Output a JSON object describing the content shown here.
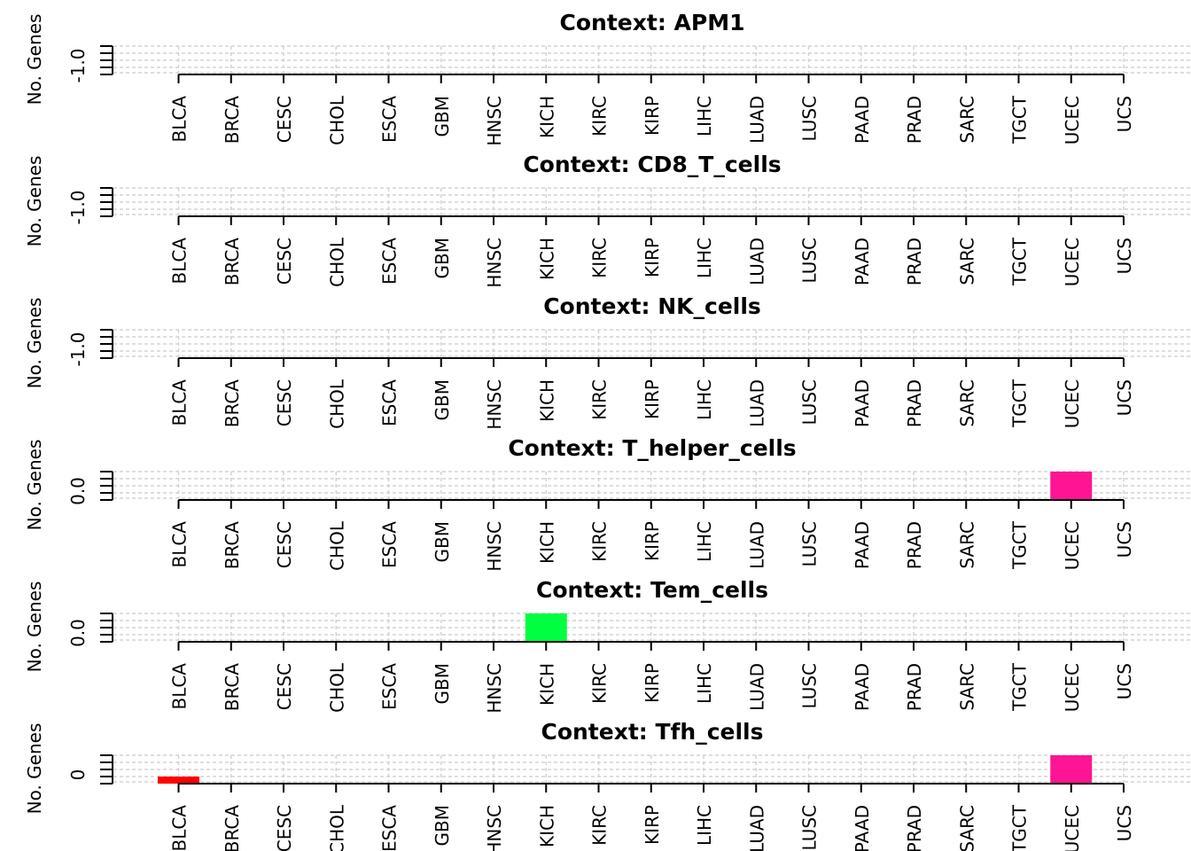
{
  "chart_data": {
    "type": "bar",
    "ylabel": "No. Genes",
    "categories": [
      "BLCA",
      "BRCA",
      "CESC",
      "CHOL",
      "ESCA",
      "GBM",
      "HNSC",
      "KICH",
      "KIRC",
      "KIRP",
      "LIHC",
      "LUAD",
      "LUSC",
      "PAAD",
      "PRAD",
      "SARC",
      "TGCT",
      "UCEC",
      "UCS"
    ],
    "panels": [
      {
        "title": "Context: APM1",
        "ytick_label": "-1.0",
        "values": [
          0,
          0,
          0,
          0,
          0,
          0,
          0,
          0,
          0,
          0,
          0,
          0,
          0,
          0,
          0,
          0,
          0,
          0,
          0
        ],
        "colors": {}
      },
      {
        "title": "Context: CD8_T_cells",
        "ytick_label": "-1.0",
        "values": [
          0,
          0,
          0,
          0,
          0,
          0,
          0,
          0,
          0,
          0,
          0,
          0,
          0,
          0,
          0,
          0,
          0,
          0,
          0
        ],
        "colors": {}
      },
      {
        "title": "Context: NK_cells",
        "ytick_label": "-1.0",
        "values": [
          0,
          0,
          0,
          0,
          0,
          0,
          0,
          0,
          0,
          0,
          0,
          0,
          0,
          0,
          0,
          0,
          0,
          0,
          0
        ],
        "colors": {}
      },
      {
        "title": "Context: T_helper_cells",
        "ytick_label": "0.0",
        "values": [
          0,
          0,
          0,
          0,
          0,
          0,
          0,
          0,
          0,
          0,
          0,
          0,
          0,
          0,
          0,
          0,
          0,
          1,
          0
        ],
        "colors": {
          "UCEC": "#ff1493"
        }
      },
      {
        "title": "Context: Tem_cells",
        "ytick_label": "0.0",
        "values": [
          0,
          0,
          0,
          0,
          0,
          0,
          0,
          1,
          0,
          0,
          0,
          0,
          0,
          0,
          0,
          0,
          0,
          0,
          0
        ],
        "colors": {
          "KICH": "#00ff40"
        }
      },
      {
        "title": "Context: Tfh_cells",
        "ytick_label": "0",
        "values": [
          0.25,
          0,
          0,
          0,
          0,
          0,
          0,
          0,
          0,
          0,
          0,
          0,
          0,
          0,
          0,
          0,
          0,
          1,
          0
        ],
        "colors": {
          "BLCA": "#ff0000",
          "UCEC": "#ff1493"
        }
      }
    ]
  }
}
